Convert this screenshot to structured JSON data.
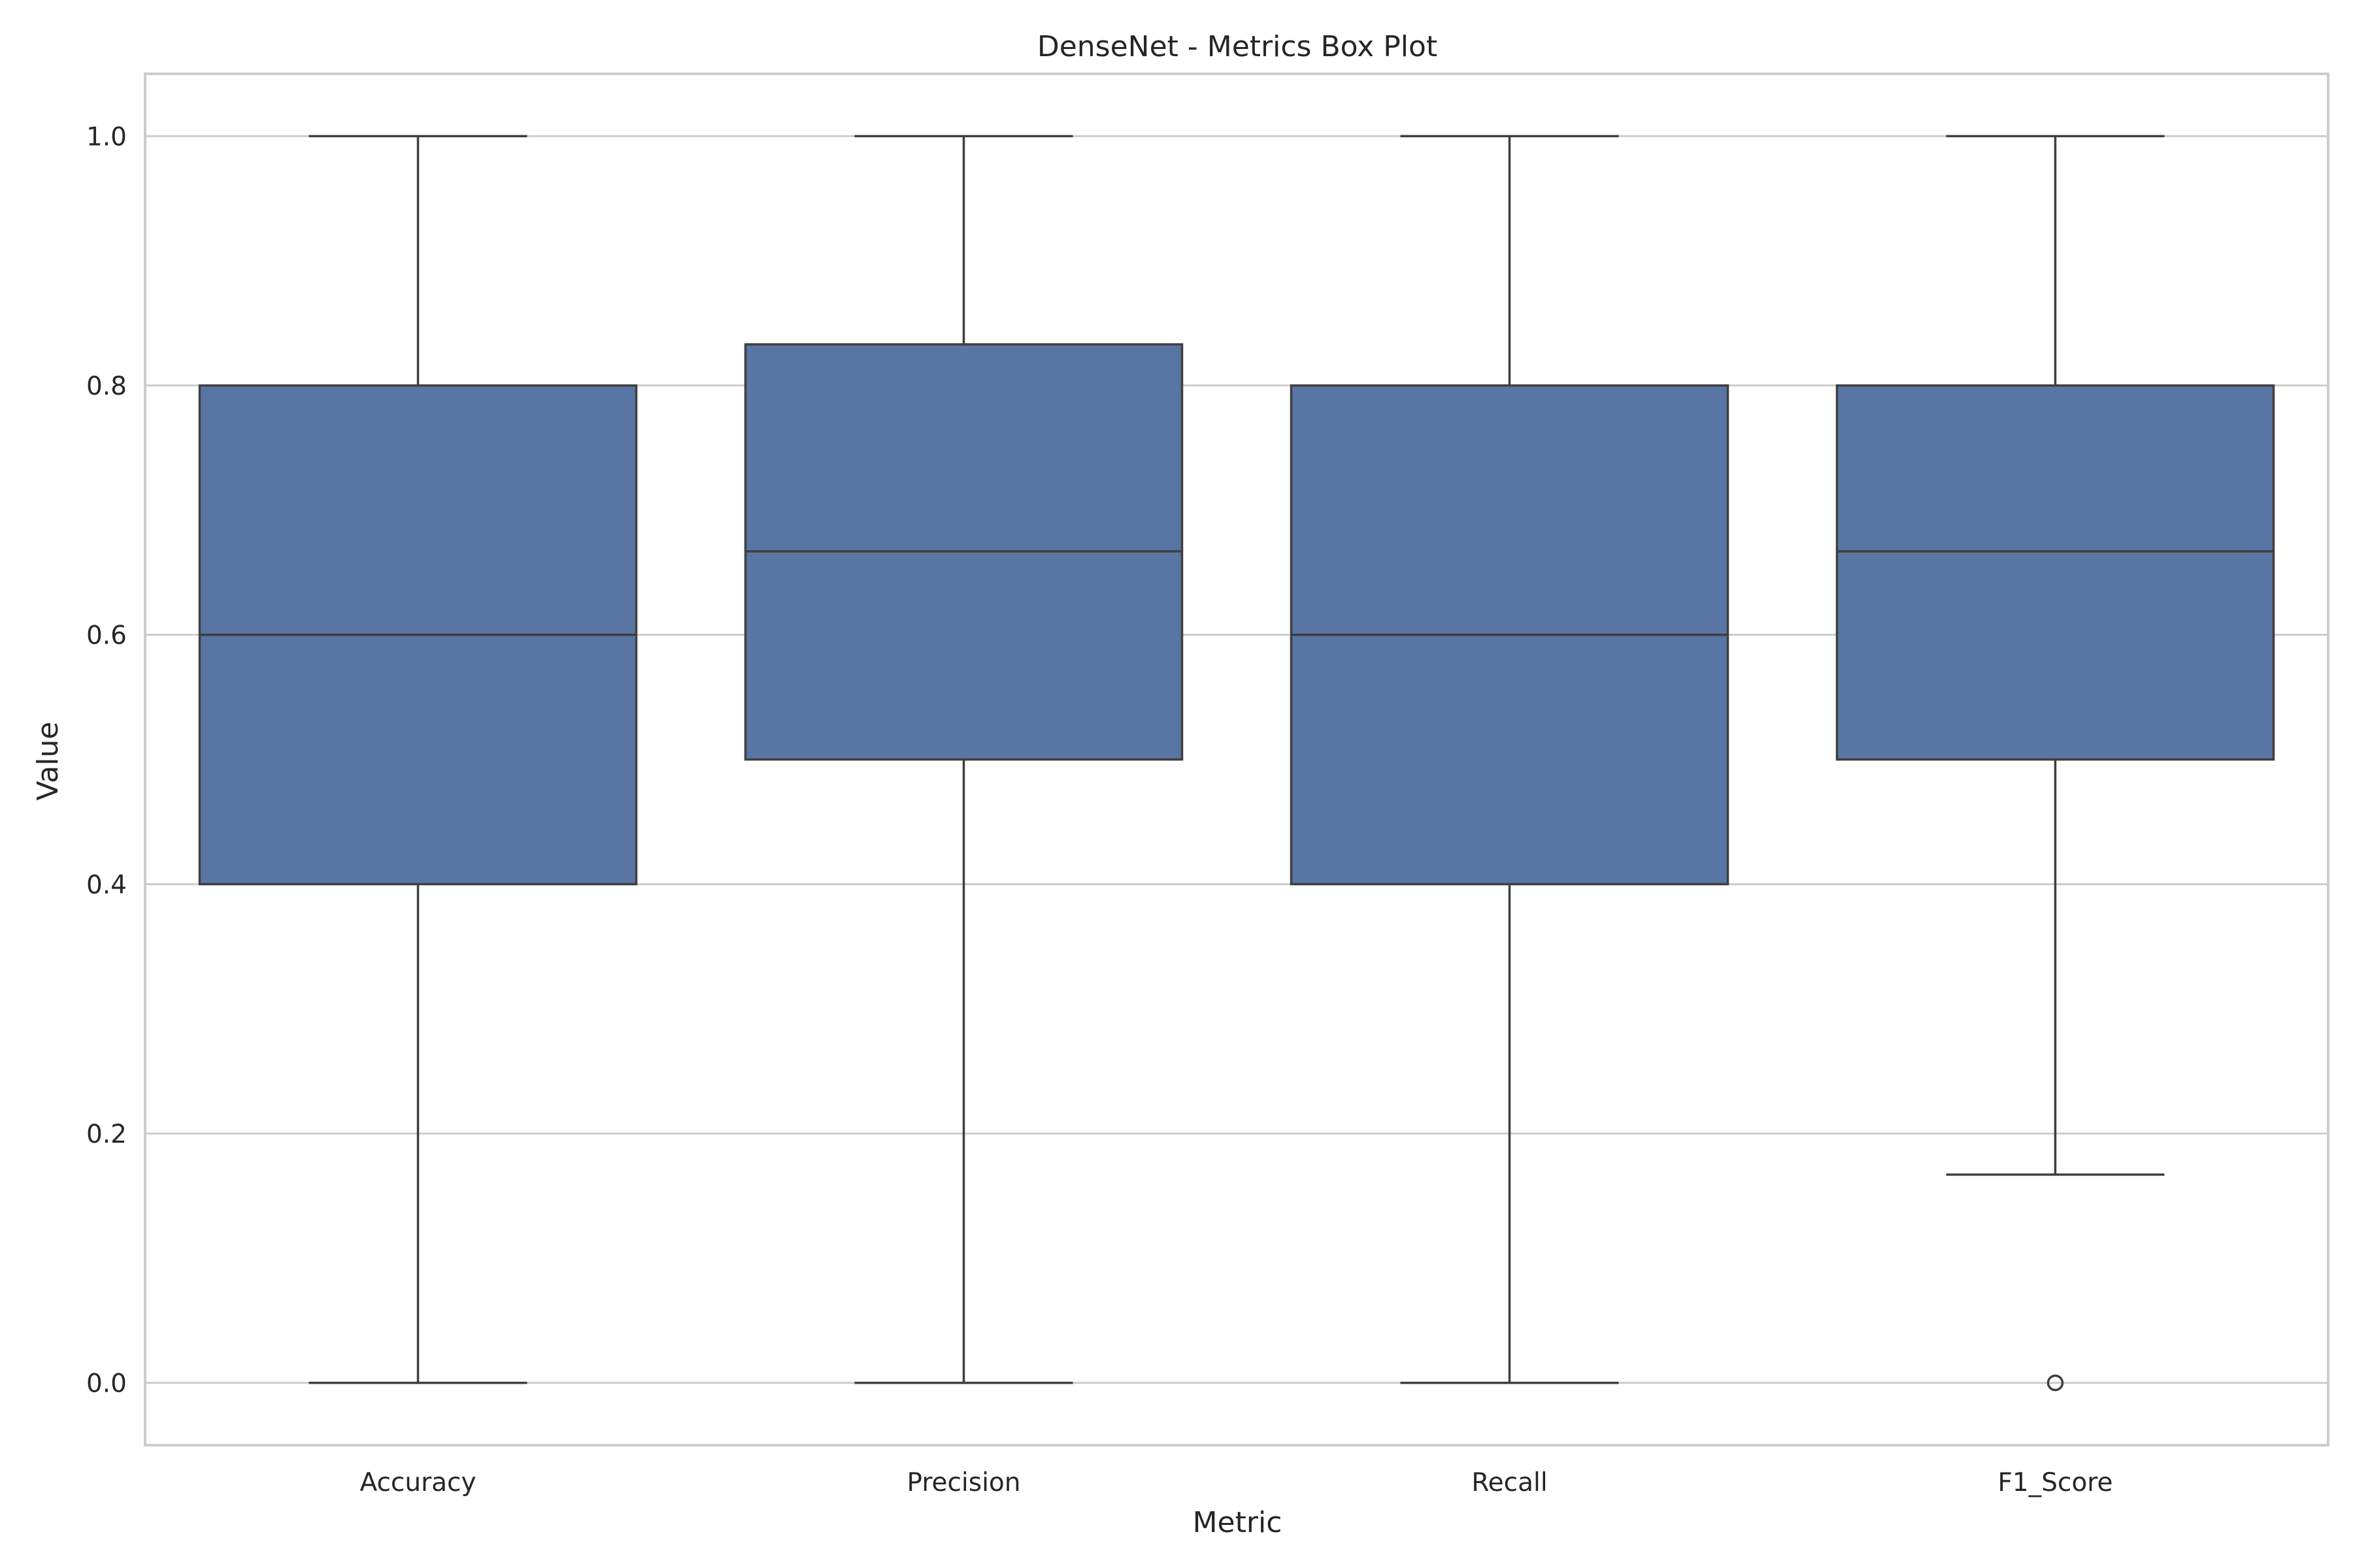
{
  "chart_data": {
    "type": "box",
    "title": "DenseNet - Metrics Box Plot",
    "xlabel": "Metric",
    "ylabel": "Value",
    "ylim": [
      -0.05,
      1.05
    ],
    "yticks": [
      "0.0",
      "0.2",
      "0.4",
      "0.6",
      "0.8",
      "1.0"
    ],
    "grid": "horizontal",
    "categories": [
      "Accuracy",
      "Precision",
      "Recall",
      "F1_Score"
    ],
    "boxes": [
      {
        "category": "Accuracy",
        "whisker_low": 0.0,
        "q1": 0.4,
        "median": 0.6,
        "q3": 0.8,
        "whisker_high": 1.0,
        "outliers": []
      },
      {
        "category": "Precision",
        "whisker_low": 0.0,
        "q1": 0.5,
        "median": 0.667,
        "q3": 0.833,
        "whisker_high": 1.0,
        "outliers": []
      },
      {
        "category": "Recall",
        "whisker_low": 0.0,
        "q1": 0.4,
        "median": 0.6,
        "q3": 0.8,
        "whisker_high": 1.0,
        "outliers": []
      },
      {
        "category": "F1_Score",
        "whisker_low": 0.167,
        "q1": 0.5,
        "median": 0.667,
        "q3": 0.8,
        "whisker_high": 1.0,
        "outliers": [
          0.0
        ]
      }
    ],
    "colors": {
      "box_fill": "#5875a4",
      "line": "#3f3f3f",
      "grid": "#cccccc",
      "frame": "#cccccc"
    }
  }
}
